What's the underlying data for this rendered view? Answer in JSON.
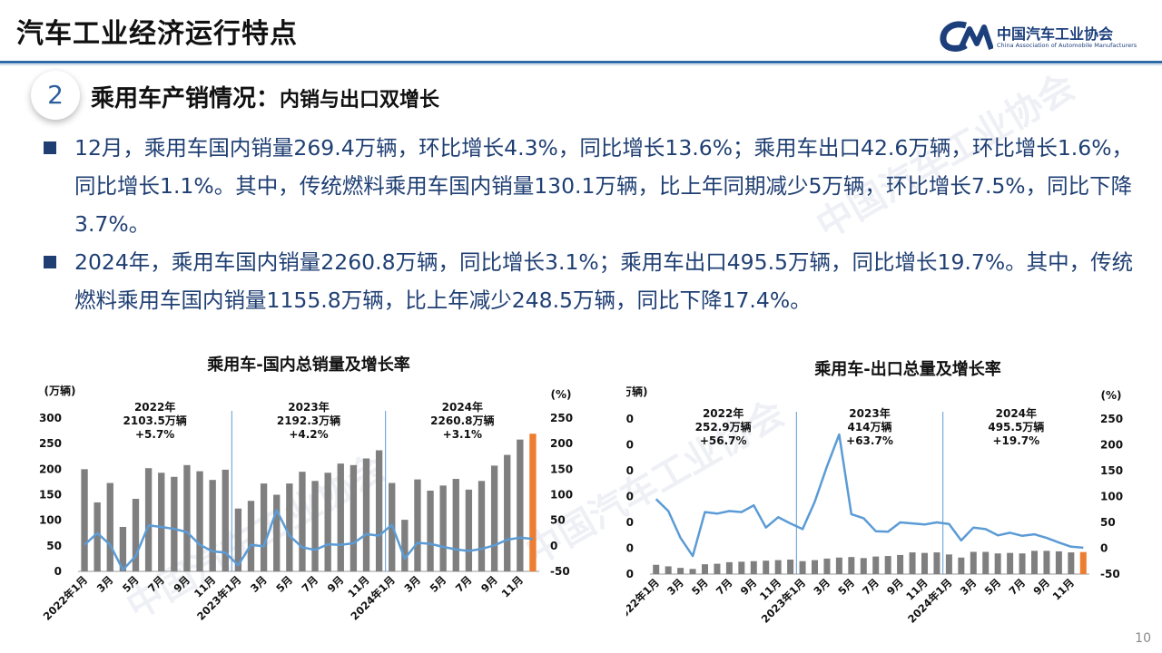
{
  "header": {
    "title": "汽车工业经济运行特点",
    "logo_cn": "中国汽车工业协会",
    "logo_en": "China Association of Automobile Manufacturers"
  },
  "section": {
    "number": "2",
    "title": "乘用车产销情况：",
    "subtitle": "内销与出口双增长"
  },
  "bullets": [
    "12月，乘用车国内销量269.4万辆，环比增长4.3%，同比增长13.6%；乘用车出口42.6万辆，环比增长1.6%，同比增长1.1%。其中，传统燃料乘用车国内销量130.1万辆，比上年同期减少5万辆，环比增长7.5%，同比下降3.7%。",
    "2024年，乘用车国内销量2260.8万辆，同比增长3.1%；乘用车出口495.5万辆，同比增长19.7%。其中，传统燃料乘用车国内销量1155.8万辆，比上年减少248.5万辆，同比下降17.4%。"
  ],
  "page_number": "10",
  "chart_data": [
    {
      "type": "bar",
      "title": "乘用车-国内总销量及增长率",
      "ylabel": "(万辆)",
      "y2label": "(%)",
      "ylim": [
        0,
        300
      ],
      "y2lim": [
        -50,
        250
      ],
      "yticks": [
        0,
        50,
        100,
        150,
        200,
        250,
        300
      ],
      "y2ticks": [
        -50,
        0,
        50,
        100,
        150,
        200,
        250
      ],
      "categories": [
        "2022年1月",
        "2月",
        "3月",
        "4月",
        "5月",
        "6月",
        "7月",
        "8月",
        "9月",
        "10月",
        "11月",
        "12月",
        "2023年1月",
        "2月",
        "3月",
        "4月",
        "5月",
        "6月",
        "7月",
        "8月",
        "9月",
        "10月",
        "11月",
        "12月",
        "2024年1月",
        "2月",
        "3月",
        "4月",
        "5月",
        "6月",
        "7月",
        "8月",
        "9月",
        "10月",
        "11月",
        "12月"
      ],
      "xtick_labels": [
        "2022年1月",
        "3月",
        "5月",
        "7月",
        "9月",
        "11月",
        "2023年1月",
        "3月",
        "5月",
        "7月",
        "9月",
        "11月",
        "2024年1月",
        "3月",
        "5月",
        "7月",
        "9月",
        "11月"
      ],
      "series": [
        {
          "values": [
            200,
            135,
            173,
            87,
            142,
            202,
            193,
            185,
            208,
            196,
            179,
            199,
            123,
            138,
            172,
            150,
            172,
            195,
            177,
            193,
            211,
            208,
            221,
            237,
            173,
            101,
            180,
            158,
            168,
            181,
            160,
            177,
            207,
            228,
            258,
            269.4
          ]
        },
        {
          "values": [
            2,
            25,
            2,
            -47,
            -20,
            40,
            37,
            33,
            27,
            2,
            -11,
            -13,
            -38,
            2,
            -1,
            70,
            20,
            -3,
            -8,
            3,
            2,
            5,
            23,
            20,
            41,
            -25,
            6,
            4,
            -2,
            -7,
            -10,
            -6,
            1,
            12,
            16,
            13.6
          ]
        }
      ],
      "annotations": [
        {
          "year": "2022年",
          "total": "2103.5万辆",
          "growth": "+5.7%"
        },
        {
          "year": "2023年",
          "total": "2192.3万辆",
          "growth": "+4.2%"
        },
        {
          "year": "2024年",
          "total": "2260.8万辆",
          "growth": "+3.1%"
        }
      ],
      "colors": {
        "bar": "#7f7f7f",
        "highlight": "#ed7d31",
        "line": "#5b9bd5",
        "divider": "#5b9bd5"
      }
    },
    {
      "type": "bar",
      "title": "乘用车-出口总量及增长率",
      "ylabel": "(万辆)",
      "y2label": "(%)",
      "ylim": [
        0,
        300
      ],
      "y2lim": [
        -50,
        250
      ],
      "yticks": [
        0,
        50,
        100,
        150,
        200,
        250,
        300
      ],
      "y2ticks": [
        -50,
        0,
        50,
        100,
        150,
        200,
        250
      ],
      "categories": [
        "2022年1月",
        "2月",
        "3月",
        "4月",
        "5月",
        "6月",
        "7月",
        "8月",
        "9月",
        "10月",
        "11月",
        "12月",
        "2023年1月",
        "2月",
        "3月",
        "4月",
        "5月",
        "6月",
        "7月",
        "8月",
        "9月",
        "10月",
        "11月",
        "12月",
        "2024年1月",
        "2月",
        "3月",
        "4月",
        "5月",
        "6月",
        "7月",
        "8月",
        "9月",
        "10月",
        "11月",
        "12月"
      ],
      "xtick_labels": [
        "2022年1月",
        "3月",
        "5月",
        "7月",
        "9月",
        "11月",
        "2023年1月",
        "3月",
        "5月",
        "7月",
        "9月",
        "11月",
        "2024年1月",
        "3月",
        "5月",
        "7月",
        "9月",
        "11月"
      ],
      "series": [
        {
          "values": [
            18,
            15,
            12,
            10,
            19,
            20,
            23,
            24,
            25,
            26,
            27,
            28,
            25,
            27,
            30,
            32,
            33,
            31,
            34,
            35,
            37,
            42,
            41,
            42,
            38,
            32,
            43,
            43,
            40,
            41,
            40,
            45,
            45,
            44,
            42,
            42.6
          ]
        },
        {
          "values": [
            95,
            72,
            20,
            -15,
            70,
            67,
            72,
            70,
            83,
            40,
            60,
            48,
            37,
            90,
            158,
            220,
            66,
            58,
            33,
            32,
            50,
            48,
            46,
            50,
            47,
            15,
            40,
            37,
            25,
            30,
            24,
            27,
            20,
            11,
            3,
            1.1
          ]
        }
      ],
      "annotations": [
        {
          "year": "2022年",
          "total": "252.9万辆",
          "growth": "+56.7%"
        },
        {
          "year": "2023年",
          "total": "414万辆",
          "growth": "+63.7%"
        },
        {
          "year": "2024年",
          "total": "495.5万辆",
          "growth": "+19.7%"
        }
      ],
      "colors": {
        "bar": "#7f7f7f",
        "highlight": "#ed7d31",
        "line": "#5b9bd5",
        "divider": "#5b9bd5"
      }
    }
  ]
}
